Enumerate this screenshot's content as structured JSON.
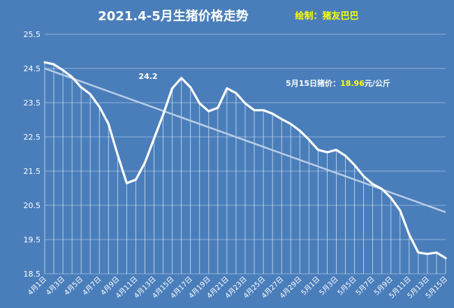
{
  "colors": {
    "background": "#4a7ebb",
    "line": "#ffffff",
    "trendline": "#b9cde6",
    "gridline": "#8fb0d8",
    "credit": "#ffff00",
    "highlight_value": "#ffff00"
  },
  "header": {
    "title": "2021.4-5月生猪价格走势",
    "credit": "绘制：猪友巴巴"
  },
  "annotations": {
    "peak_label": "24.2",
    "price_prefix": "5月15日猪价：",
    "price_value": "18.96",
    "price_unit": "元/公斤"
  },
  "chart_data": {
    "type": "line",
    "title": "2021.4-5月生猪价格走势",
    "ylim": [
      18.5,
      25.5
    ],
    "yticks": [
      "18.5",
      "19.5",
      "20.5",
      "21.5",
      "22.5",
      "23.5",
      "24.5",
      "25.5"
    ],
    "grid": "horizontal",
    "drop_lines": true,
    "x": [
      "4月1日",
      "4月2日",
      "4月3日",
      "4月4日",
      "4月5日",
      "4月6日",
      "4月7日",
      "4月8日",
      "4月9日",
      "4月10日",
      "4月11日",
      "4月12日",
      "4月13日",
      "4月14日",
      "4月15日",
      "4月16日",
      "4月17日",
      "4月18日",
      "4月19日",
      "4月20日",
      "4月21日",
      "4月22日",
      "4月23日",
      "4月24日",
      "4月25日",
      "4月26日",
      "4月27日",
      "4月28日",
      "4月29日",
      "4月30日",
      "5月1日",
      "5月2日",
      "5月3日",
      "5月4日",
      "5月5日",
      "5月6日",
      "5月7日",
      "5月8日",
      "5月9日",
      "5月10日",
      "5月11日",
      "5月12日",
      "5月13日",
      "5月14日",
      "5月15日"
    ],
    "x_tick_labels": [
      "4月1日",
      "4月3日",
      "4月5日",
      "4月7日",
      "4月9日",
      "4月11日",
      "4月13日",
      "4月15日",
      "4月17日",
      "4月19日",
      "4月21日",
      "4月23日",
      "4月25日",
      "4月27日",
      "4月29日",
      "5月1日",
      "5月3日",
      "5月5日",
      "5月7日",
      "5月9日",
      "5月11日",
      "5月13日",
      "5月15日"
    ],
    "series": [
      {
        "values": [
          24.68,
          24.62,
          24.45,
          24.25,
          23.95,
          23.75,
          23.38,
          22.88,
          21.98,
          21.15,
          21.25,
          21.75,
          22.45,
          23.15,
          23.92,
          24.22,
          23.95,
          23.48,
          23.25,
          23.35,
          23.92,
          23.78,
          23.48,
          23.28,
          23.28,
          23.18,
          23.02,
          22.88,
          22.68,
          22.42,
          22.12,
          22.05,
          22.12,
          21.95,
          21.68,
          21.35,
          21.12,
          20.98,
          20.72,
          20.35,
          19.65,
          19.12,
          19.08,
          19.12,
          18.96
        ]
      }
    ],
    "trendline": {
      "start": 24.5,
      "end": 20.3
    }
  }
}
